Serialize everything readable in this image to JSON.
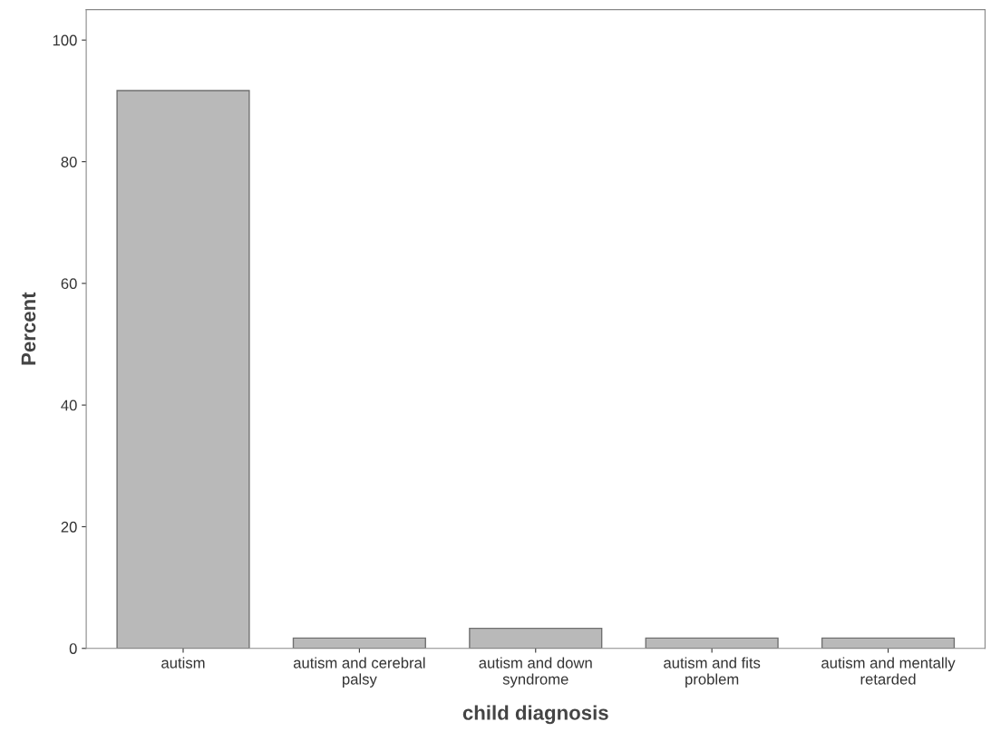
{
  "chart_data": {
    "type": "bar",
    "xlabel": "child diagnosis",
    "ylabel": "Percent",
    "categories": [
      "autism",
      "autism and cerebral\npalsy",
      "autism and down\nsyndrome",
      "autism and fits\nproblem",
      "autism and mentally\nretarded"
    ],
    "values": [
      91.7,
      1.7,
      3.3,
      1.7,
      1.7
    ],
    "color": "#b9b9b9",
    "ylim": [
      0,
      105
    ],
    "yticks": [
      0,
      20,
      40,
      60,
      80,
      100
    ],
    "grid": false
  }
}
